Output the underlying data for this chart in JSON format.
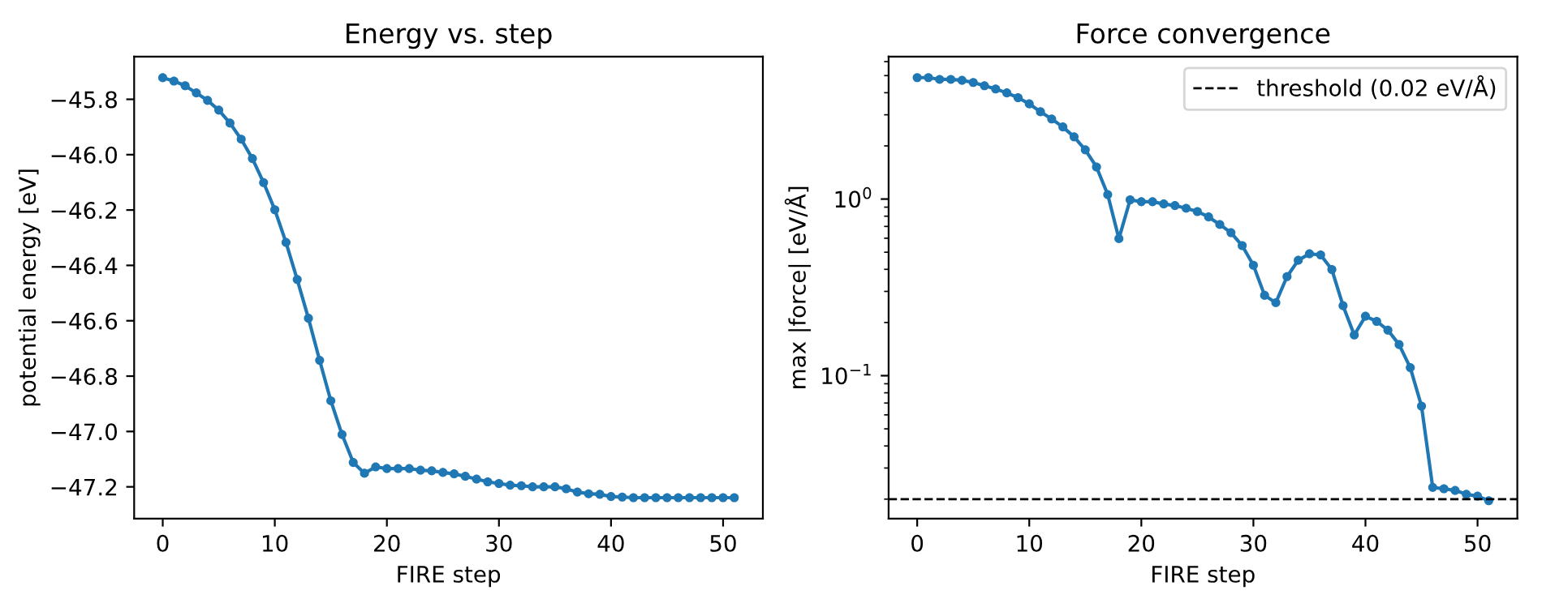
{
  "chart_data": [
    {
      "type": "line",
      "title": "Energy vs. step",
      "xlabel": "FIRE step",
      "ylabel": "potential energy [eV]",
      "x": [
        0,
        1,
        2,
        3,
        4,
        5,
        6,
        7,
        8,
        9,
        10,
        11,
        12,
        13,
        14,
        15,
        16,
        17,
        18,
        19,
        20,
        21,
        22,
        23,
        24,
        25,
        26,
        27,
        28,
        29,
        30,
        31,
        32,
        33,
        34,
        35,
        36,
        37,
        38,
        39,
        40,
        41,
        42,
        43,
        44,
        45,
        46,
        47,
        48,
        49,
        50,
        51
      ],
      "series": [
        {
          "color": "#1f77b4",
          "values": [
            -45.722,
            -45.734,
            -45.751,
            -45.777,
            -45.804,
            -45.839,
            -45.886,
            -45.944,
            -46.014,
            -46.101,
            -46.199,
            -46.317,
            -46.451,
            -46.591,
            -46.743,
            -46.889,
            -47.011,
            -47.112,
            -47.151,
            -47.128,
            -47.134,
            -47.134,
            -47.134,
            -47.14,
            -47.142,
            -47.148,
            -47.153,
            -47.162,
            -47.172,
            -47.182,
            -47.188,
            -47.194,
            -47.196,
            -47.2,
            -47.2,
            -47.2,
            -47.207,
            -47.219,
            -47.225,
            -47.227,
            -47.235,
            -47.237,
            -47.239,
            -47.239,
            -47.239,
            -47.239,
            -47.239,
            -47.239,
            -47.239,
            -47.239,
            -47.239,
            -47.239
          ]
        }
      ],
      "xlim": [
        -2.55,
        53.55
      ],
      "xticks": [
        0,
        10,
        20,
        30,
        40,
        50
      ],
      "ylim": [
        -47.315,
        -45.646
      ],
      "yticks": [
        {
          "value": -47.2,
          "label": "−47.2"
        },
        {
          "value": -47.0,
          "label": "−47.0"
        },
        {
          "value": -46.8,
          "label": "−46.8"
        },
        {
          "value": -46.6,
          "label": "−46.6"
        },
        {
          "value": -46.4,
          "label": "−46.4"
        },
        {
          "value": -46.2,
          "label": "−46.2"
        },
        {
          "value": -46.0,
          "label": "−46.0"
        },
        {
          "value": -45.8,
          "label": "−45.8"
        }
      ],
      "marker": "circle",
      "line_style": "solid",
      "grid": false,
      "legend": false
    },
    {
      "type": "line",
      "title": "Force convergence",
      "xlabel": "FIRE step",
      "ylabel": "max |force| [eV/Å]",
      "x": [
        0,
        1,
        2,
        3,
        4,
        5,
        6,
        7,
        8,
        9,
        10,
        11,
        12,
        13,
        14,
        15,
        16,
        17,
        18,
        19,
        20,
        21,
        22,
        23,
        24,
        25,
        26,
        27,
        28,
        29,
        30,
        31,
        32,
        33,
        34,
        35,
        36,
        37,
        38,
        39,
        40,
        41,
        42,
        43,
        44,
        45,
        46,
        47,
        48,
        49,
        50,
        51
      ],
      "series": [
        {
          "color": "#1f77b4",
          "values": [
            4.87,
            4.87,
            4.76,
            4.76,
            4.7,
            4.57,
            4.38,
            4.2,
            3.99,
            3.75,
            3.46,
            3.12,
            2.84,
            2.56,
            2.25,
            1.9,
            1.52,
            1.06,
            0.597,
            0.99,
            0.966,
            0.966,
            0.938,
            0.919,
            0.887,
            0.85,
            0.792,
            0.718,
            0.645,
            0.545,
            0.422,
            0.285,
            0.259,
            0.364,
            0.45,
            0.49,
            0.483,
            0.399,
            0.249,
            0.17,
            0.217,
            0.203,
            0.181,
            0.15,
            0.111,
            0.0673,
            0.0233,
            0.0229,
            0.0224,
            0.0213,
            0.0208,
            0.0196
          ]
        }
      ],
      "xlim": [
        -2.55,
        53.55
      ],
      "xticks": [
        0,
        10,
        20,
        30,
        40,
        50
      ],
      "log": "y",
      "ylim": [
        0.0155,
        6.4
      ],
      "yticks": [
        {
          "value": 0.1,
          "label": "10$^{−1}$"
        },
        {
          "value": 1,
          "label": "10$^{0}$"
        }
      ],
      "ref_lines": [
        {
          "axis": "y",
          "value": 0.02,
          "label": "threshold (0.02 eV/Å)",
          "color": "#000000",
          "line_style": "dashed"
        }
      ],
      "marker": "circle",
      "line_style": "solid",
      "grid": false,
      "legend": "top right"
    }
  ]
}
